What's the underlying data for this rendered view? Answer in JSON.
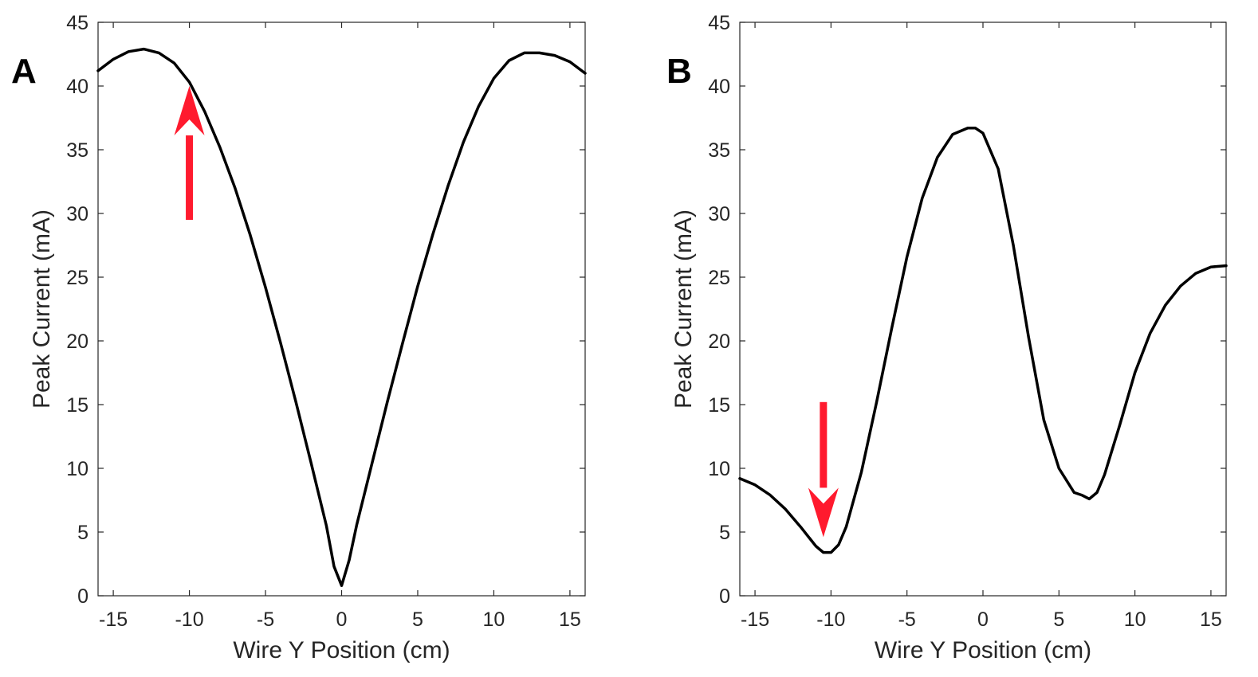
{
  "chart_data": [
    {
      "type": "line",
      "panel_label": "A",
      "title": "",
      "xlabel": "Wire Y Position (cm)",
      "ylabel": "Peak Current (mA)",
      "xlim": [
        -16,
        16
      ],
      "ylim": [
        0,
        45
      ],
      "xticks": [
        -15,
        -10,
        -5,
        0,
        5,
        10,
        15
      ],
      "xtick_labels": [
        "-15",
        "-10",
        "-5",
        "0",
        "5",
        "10",
        "15"
      ],
      "yticks": [
        0,
        5,
        10,
        15,
        20,
        25,
        30,
        35,
        40,
        45
      ],
      "ytick_labels": [
        "0",
        "5",
        "10",
        "15",
        "20",
        "25",
        "30",
        "35",
        "40",
        "45"
      ],
      "grid": false,
      "series": [
        {
          "name": "Peak current",
          "color": "#000000",
          "x": [
            -16,
            -15,
            -14,
            -13,
            -12,
            -11,
            -10,
            -9,
            -8,
            -7,
            -6,
            -5,
            -4,
            -3,
            -2,
            -1,
            -0.5,
            0,
            0.5,
            1,
            2,
            3,
            4,
            5,
            6,
            7,
            8,
            9,
            10,
            11,
            12,
            13,
            14,
            15,
            16
          ],
          "y": [
            41.2,
            42.1,
            42.7,
            42.9,
            42.6,
            41.8,
            40.3,
            38.0,
            35.2,
            32.0,
            28.3,
            24.2,
            19.8,
            15.2,
            10.4,
            5.5,
            2.3,
            0.8,
            2.8,
            5.6,
            10.4,
            15.2,
            19.8,
            24.3,
            28.4,
            32.2,
            35.6,
            38.4,
            40.6,
            42.0,
            42.6,
            42.6,
            42.4,
            41.9,
            41.0
          ]
        }
      ],
      "annotations": [
        {
          "type": "arrow",
          "direction": "up",
          "color": "#ff1a2e",
          "x": -10,
          "y_from": 29.5,
          "y_to": 40.0
        }
      ]
    },
    {
      "type": "line",
      "panel_label": "B",
      "title": "",
      "xlabel": "Wire Y Position (cm)",
      "ylabel": "Peak Current (mA)",
      "xlim": [
        -16,
        16
      ],
      "ylim": [
        0,
        45
      ],
      "xticks": [
        -15,
        -10,
        -5,
        0,
        5,
        10,
        15
      ],
      "xtick_labels": [
        "-15",
        "-10",
        "-5",
        "0",
        "5",
        "10",
        "15"
      ],
      "yticks": [
        0,
        5,
        10,
        15,
        20,
        25,
        30,
        35,
        40,
        45
      ],
      "ytick_labels": [
        "0",
        "5",
        "10",
        "15",
        "20",
        "25",
        "30",
        "35",
        "40",
        "45"
      ],
      "grid": false,
      "series": [
        {
          "name": "Peak current",
          "color": "#000000",
          "x": [
            -16,
            -15,
            -14,
            -13,
            -12,
            -11,
            -10.5,
            -10,
            -9.5,
            -9,
            -8,
            -7,
            -6,
            -5,
            -4,
            -3,
            -2,
            -1,
            -0.5,
            0,
            1,
            2,
            3,
            4,
            5,
            6,
            6.5,
            7,
            7.5,
            8,
            9,
            10,
            11,
            12,
            13,
            14,
            15,
            16
          ],
          "y": [
            9.2,
            8.7,
            7.9,
            6.8,
            5.4,
            3.9,
            3.4,
            3.4,
            4.0,
            5.4,
            9.7,
            15.2,
            21.0,
            26.6,
            31.2,
            34.4,
            36.2,
            36.7,
            36.7,
            36.3,
            33.5,
            27.5,
            20.3,
            13.8,
            10.0,
            8.1,
            7.9,
            7.6,
            8.1,
            9.5,
            13.4,
            17.5,
            20.6,
            22.8,
            24.3,
            25.3,
            25.8,
            25.9
          ]
        }
      ],
      "annotations": [
        {
          "type": "arrow",
          "direction": "down",
          "color": "#ff1a2e",
          "x": -10.5,
          "y_from": 15.2,
          "y_to": 4.6
        }
      ]
    }
  ]
}
